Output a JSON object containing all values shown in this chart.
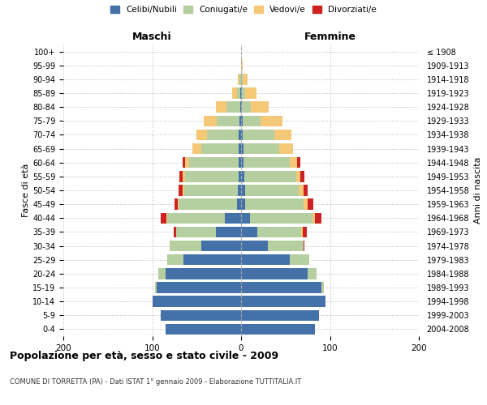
{
  "age_groups": [
    "0-4",
    "5-9",
    "10-14",
    "15-19",
    "20-24",
    "25-29",
    "30-34",
    "35-39",
    "40-44",
    "45-49",
    "50-54",
    "55-59",
    "60-64",
    "65-69",
    "70-74",
    "75-79",
    "80-84",
    "85-89",
    "90-94",
    "95-99",
    "100+"
  ],
  "birth_years": [
    "2004-2008",
    "1999-2003",
    "1994-1998",
    "1989-1993",
    "1984-1988",
    "1979-1983",
    "1974-1978",
    "1969-1973",
    "1964-1968",
    "1959-1963",
    "1954-1958",
    "1949-1953",
    "1944-1948",
    "1939-1943",
    "1934-1938",
    "1929-1933",
    "1924-1928",
    "1919-1923",
    "1914-1918",
    "1909-1913",
    "≤ 1908"
  ],
  "colors": {
    "celibi": "#4472a8",
    "coniugati": "#b5cfa0",
    "vedovi": "#f5c878",
    "divorziati": "#cc2222"
  },
  "maschi": {
    "celibi": [
      85,
      90,
      100,
      95,
      85,
      65,
      45,
      28,
      18,
      5,
      4,
      3,
      3,
      3,
      3,
      2,
      1,
      1,
      0,
      0,
      0
    ],
    "coniugati": [
      0,
      0,
      0,
      2,
      8,
      18,
      35,
      45,
      65,
      65,
      60,
      60,
      55,
      42,
      35,
      25,
      15,
      4,
      2,
      0,
      0
    ],
    "vedovi": [
      0,
      0,
      0,
      0,
      0,
      0,
      0,
      0,
      1,
      1,
      2,
      3,
      5,
      10,
      12,
      15,
      12,
      5,
      2,
      0,
      0
    ],
    "divorziati": [
      0,
      0,
      0,
      0,
      0,
      0,
      0,
      3,
      6,
      4,
      4,
      3,
      3,
      0,
      0,
      0,
      0,
      0,
      0,
      0,
      0
    ]
  },
  "femmine": {
    "nubili": [
      83,
      88,
      95,
      90,
      75,
      55,
      30,
      18,
      10,
      5,
      5,
      4,
      3,
      3,
      2,
      2,
      1,
      1,
      0,
      0,
      0
    ],
    "coniugate": [
      0,
      0,
      0,
      3,
      10,
      22,
      40,
      50,
      70,
      65,
      60,
      58,
      52,
      40,
      35,
      20,
      10,
      4,
      2,
      0,
      0
    ],
    "vedove": [
      0,
      0,
      0,
      0,
      0,
      0,
      0,
      1,
      3,
      5,
      5,
      5,
      8,
      15,
      20,
      25,
      20,
      12,
      5,
      2,
      0
    ],
    "divorziate": [
      0,
      0,
      0,
      0,
      0,
      0,
      1,
      5,
      7,
      6,
      5,
      4,
      4,
      0,
      0,
      0,
      0,
      0,
      0,
      0,
      0
    ]
  },
  "xlim": 200,
  "title": "Popolazione per età, sesso e stato civile - 2009",
  "subtitle": "COMUNE DI TORRETTA (PA) - Dati ISTAT 1° gennaio 2009 - Elaborazione TUTTITALIA.IT",
  "ylabel_left": "Fasce di età",
  "ylabel_right": "Anni di nascita",
  "header_left": "Maschi",
  "header_right": "Femmine",
  "legend_labels": [
    "Celibi/Nubili",
    "Coniugati/e",
    "Vedovi/e",
    "Divorziati/e"
  ],
  "plot_bg": "#ffffff"
}
